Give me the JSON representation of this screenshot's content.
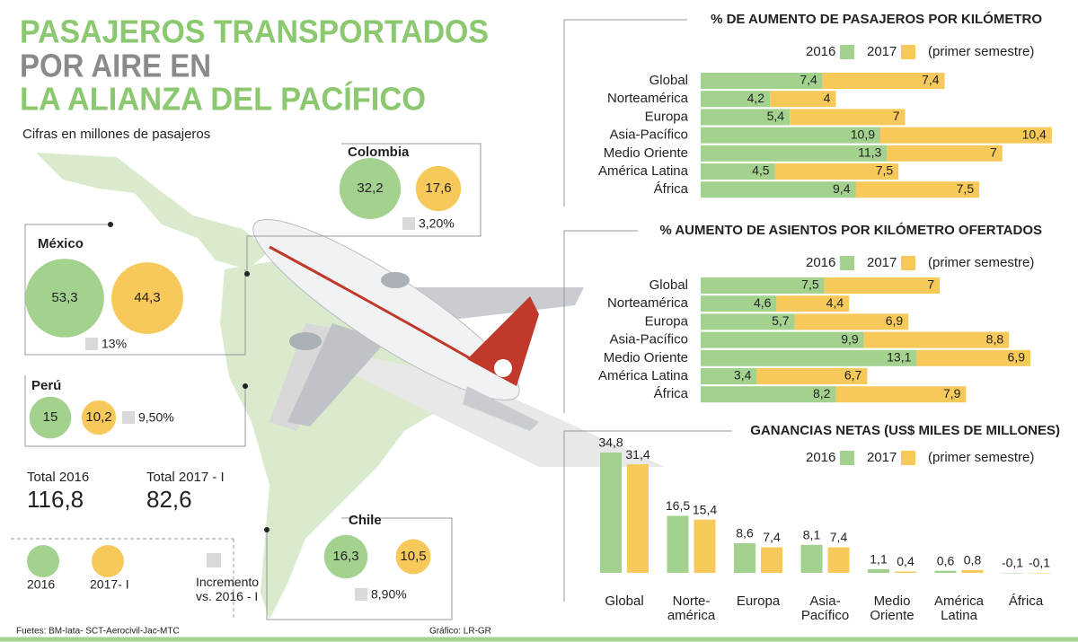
{
  "title_lines": [
    "PASAJEROS TRANSPORTADOS",
    "POR AIRE EN",
    "LA ALIANZA DEL PACÍFICO"
  ],
  "subtitle": "Cifras en millones de pasajeros",
  "chart_data": [
    {
      "type": "bubble",
      "categories": [
        "México",
        "Colombia",
        "Perú",
        "Chile"
      ],
      "series": [
        {
          "name": "2016",
          "color": "#a3d28f",
          "values": [
            53.3,
            32.2,
            15,
            16.3
          ],
          "value_labels": [
            "53,3",
            "32,2",
            "15",
            "16,3"
          ]
        },
        {
          "name": "2017- I",
          "color": "#f7c95b",
          "values": [
            44.3,
            17.6,
            10.2,
            10.5
          ],
          "value_labels": [
            "44,3",
            "17,6",
            "10,2",
            "10,5"
          ]
        }
      ],
      "increment": {
        "name": "Incremento vs. 2016 - I",
        "color": "#d9d9d9",
        "values": [
          13,
          3.2,
          9.5,
          8.9
        ],
        "value_labels": [
          "13%",
          "3,20%",
          "9,50%",
          "8,90%"
        ]
      },
      "totals": [
        {
          "label": "Total 2016",
          "value": "116,8"
        },
        {
          "label": "Total 2017 - I",
          "value": "82,6"
        }
      ]
    },
    {
      "type": "hbar-stacked",
      "title": "% DE AUMENTO DE PASAJEROS POR KILÓMETRO",
      "note": "(primer semestre)",
      "categories": [
        "Global",
        "Norteamérica",
        "Europa",
        "Asia-Pacífico",
        "Medio Oriente",
        "América Latina",
        "África"
      ],
      "series": [
        {
          "name": "2016",
          "color": "#a3d28f",
          "values": [
            7.4,
            4.2,
            5.4,
            10.9,
            11.3,
            4.5,
            9.4
          ],
          "value_labels": [
            "7,4",
            "4,2",
            "5,4",
            "10,9",
            "11,3",
            "4,5",
            "9,4"
          ]
        },
        {
          "name": "2017",
          "color": "#f7c95b",
          "values": [
            7.4,
            4,
            7,
            10.4,
            7,
            7.5,
            7.5
          ],
          "value_labels": [
            "7,4",
            "4",
            "7",
            "10,4",
            "7",
            "7,5",
            "7,5"
          ]
        }
      ]
    },
    {
      "type": "hbar-stacked",
      "title": "% AUMENTO DE ASIENTOS POR KILÓMETRO OFERTADOS",
      "note": "(primer semestre)",
      "categories": [
        "Global",
        "Norteamérica",
        "Europa",
        "Asia-Pacífico",
        "Medio Oriente",
        "América Latina",
        "África"
      ],
      "series": [
        {
          "name": "2016",
          "color": "#a3d28f",
          "values": [
            7.5,
            4.6,
            5.7,
            9.9,
            13.1,
            3.4,
            8.2
          ],
          "value_labels": [
            "7,5",
            "4,6",
            "5,7",
            "9,9",
            "13,1",
            "3,4",
            "8,2"
          ]
        },
        {
          "name": "2017",
          "color": "#f7c95b",
          "values": [
            7,
            4.4,
            6.9,
            8.8,
            6.9,
            6.7,
            7.9
          ],
          "value_labels": [
            "7",
            "4,4",
            "6,9",
            "8,8",
            "6,9",
            "6,7",
            "7,9"
          ]
        }
      ]
    },
    {
      "type": "bar",
      "title": "GANANCIAS NETAS (US$ MILES DE MILLONES)",
      "note": "(primer semestre)",
      "categories": [
        "Global",
        "Norte-\namérica",
        "Europa",
        "Asia-\nPacífico",
        "Medio\nOriente",
        "América\nLatina",
        "África"
      ],
      "series": [
        {
          "name": "2016",
          "color": "#a3d28f",
          "values": [
            34.8,
            16.5,
            8.6,
            8.1,
            1.1,
            0.6,
            -0.1
          ],
          "value_labels": [
            "34,8",
            "16,5",
            "8,6",
            "8,1",
            "1,1",
            "0,6",
            "-0,1"
          ]
        },
        {
          "name": "2017",
          "color": "#f7c95b",
          "values": [
            31.4,
            15.4,
            7.4,
            7.4,
            0.4,
            0.8,
            -0.1
          ],
          "value_labels": [
            "31,4",
            "15,4",
            "7,4",
            "7,4",
            "0,4",
            "0,8",
            "-0,1"
          ]
        }
      ]
    }
  ],
  "sources": "Fuetes: BM-Iata- SCT-Aerocivil-Jac-MTC",
  "credit": "Gráfico: LR-GR"
}
